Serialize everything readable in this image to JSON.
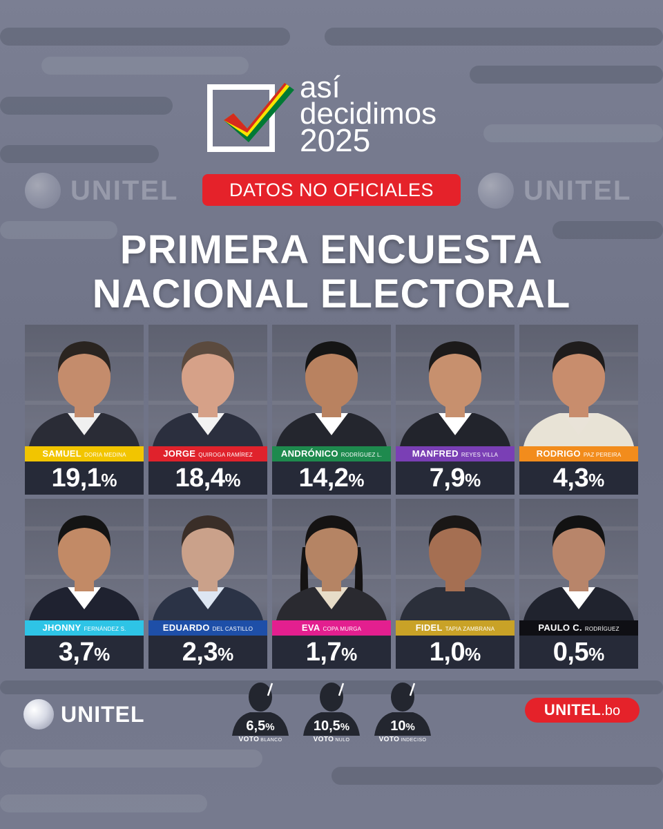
{
  "brand": {
    "logo_line1": "así",
    "logo_line2": "decidimos",
    "logo_year": "2025",
    "watermark": "UNITEL",
    "badge": "DATOS NO OFICIALES",
    "footer_logo": "UNITEL",
    "site_main": "UNITEL",
    "site_suffix": ".bo",
    "flag_colors": [
      "#d52b1e",
      "#f9e300",
      "#007934"
    ]
  },
  "title": {
    "line1": "PRIMERA ENCUESTA",
    "line2": "NACIONAL ELECTORAL"
  },
  "candidates": [
    {
      "first": "SAMUEL",
      "last": "DORIA MEDINA",
      "value": "19,1",
      "bar_color": "#f2c500",
      "skin": "#c48c6c",
      "hair": "#2a2420",
      "shirt": "#f0f0f0",
      "jacket": "#2a2c36"
    },
    {
      "first": "JORGE",
      "last": "QUIROGA RAMÍREZ",
      "value": "18,4",
      "bar_color": "#e0222c",
      "skin": "#d6a188",
      "hair": "#5b4a3e",
      "shirt": "#f2f2f2",
      "jacket": "#2b2f3e"
    },
    {
      "first": "ANDRÓNICO",
      "last": "RODRÍGUEZ L.",
      "value": "14,2",
      "bar_color": "#1e8a4e",
      "skin": "#b98260",
      "hair": "#151515",
      "shirt": "#ffffff",
      "jacket": "#24262e"
    },
    {
      "first": "MANFRED",
      "last": "REYES VILLA",
      "value": "7,9",
      "bar_color": "#7a3fb5",
      "skin": "#c7906e",
      "hair": "#1c1a1a",
      "shirt": "#ffffff",
      "jacket": "#22242c"
    },
    {
      "first": "RODRIGO",
      "last": "PAZ PEREIRA",
      "value": "4,3",
      "bar_color": "#f28c1c",
      "skin": "#c88d6d",
      "hair": "#1f1c1c",
      "shirt": "#e9e3d8",
      "jacket": "#e8e3d6"
    },
    {
      "first": "JHONNY",
      "last": "FERNÁNDEZ S.",
      "value": "3,7",
      "bar_color": "#2ec4e6",
      "skin": "#c28a66",
      "hair": "#141414",
      "shirt": "#ffffff",
      "jacket": "#1f2230"
    },
    {
      "first": "EDUARDO",
      "last": "DEL CASTILLO",
      "value": "2,3",
      "bar_color": "#1e4fa8",
      "skin": "#caa18a",
      "hair": "#3a2e28",
      "shirt": "#dde6f2",
      "jacket": "#2b3346"
    },
    {
      "first": "EVA",
      "last": "COPA MURGA",
      "value": "1,7",
      "bar_color": "#e31f8f",
      "skin": "#b58464",
      "hair": "#151313",
      "shirt": "#e7dcc8",
      "jacket": "#2a2a30"
    },
    {
      "first": "FIDEL",
      "last": "TAPIA ZAMBRANA",
      "value": "1,0",
      "bar_color": "#c9a227",
      "skin": "#a56f52",
      "hair": "#1a1716",
      "shirt": "#2b2f3a",
      "jacket": "#2b2f3a"
    },
    {
      "first": "PAULO C.",
      "last": "RODRÍGUEZ",
      "value": "0,5",
      "bar_color": "#0f0f14",
      "skin": "#b8856a",
      "hair": "#121212",
      "shirt": "#ffffff",
      "jacket": "#20232e"
    }
  ],
  "percent_sign": "%",
  "votes": [
    {
      "value": "6,5",
      "label": "VOTO",
      "sublabel": "BLANCO"
    },
    {
      "value": "10,5",
      "label": "VOTO",
      "sublabel": "NULO"
    },
    {
      "value": "10",
      "label": "VOTO",
      "sublabel": "INDECISO"
    }
  ]
}
